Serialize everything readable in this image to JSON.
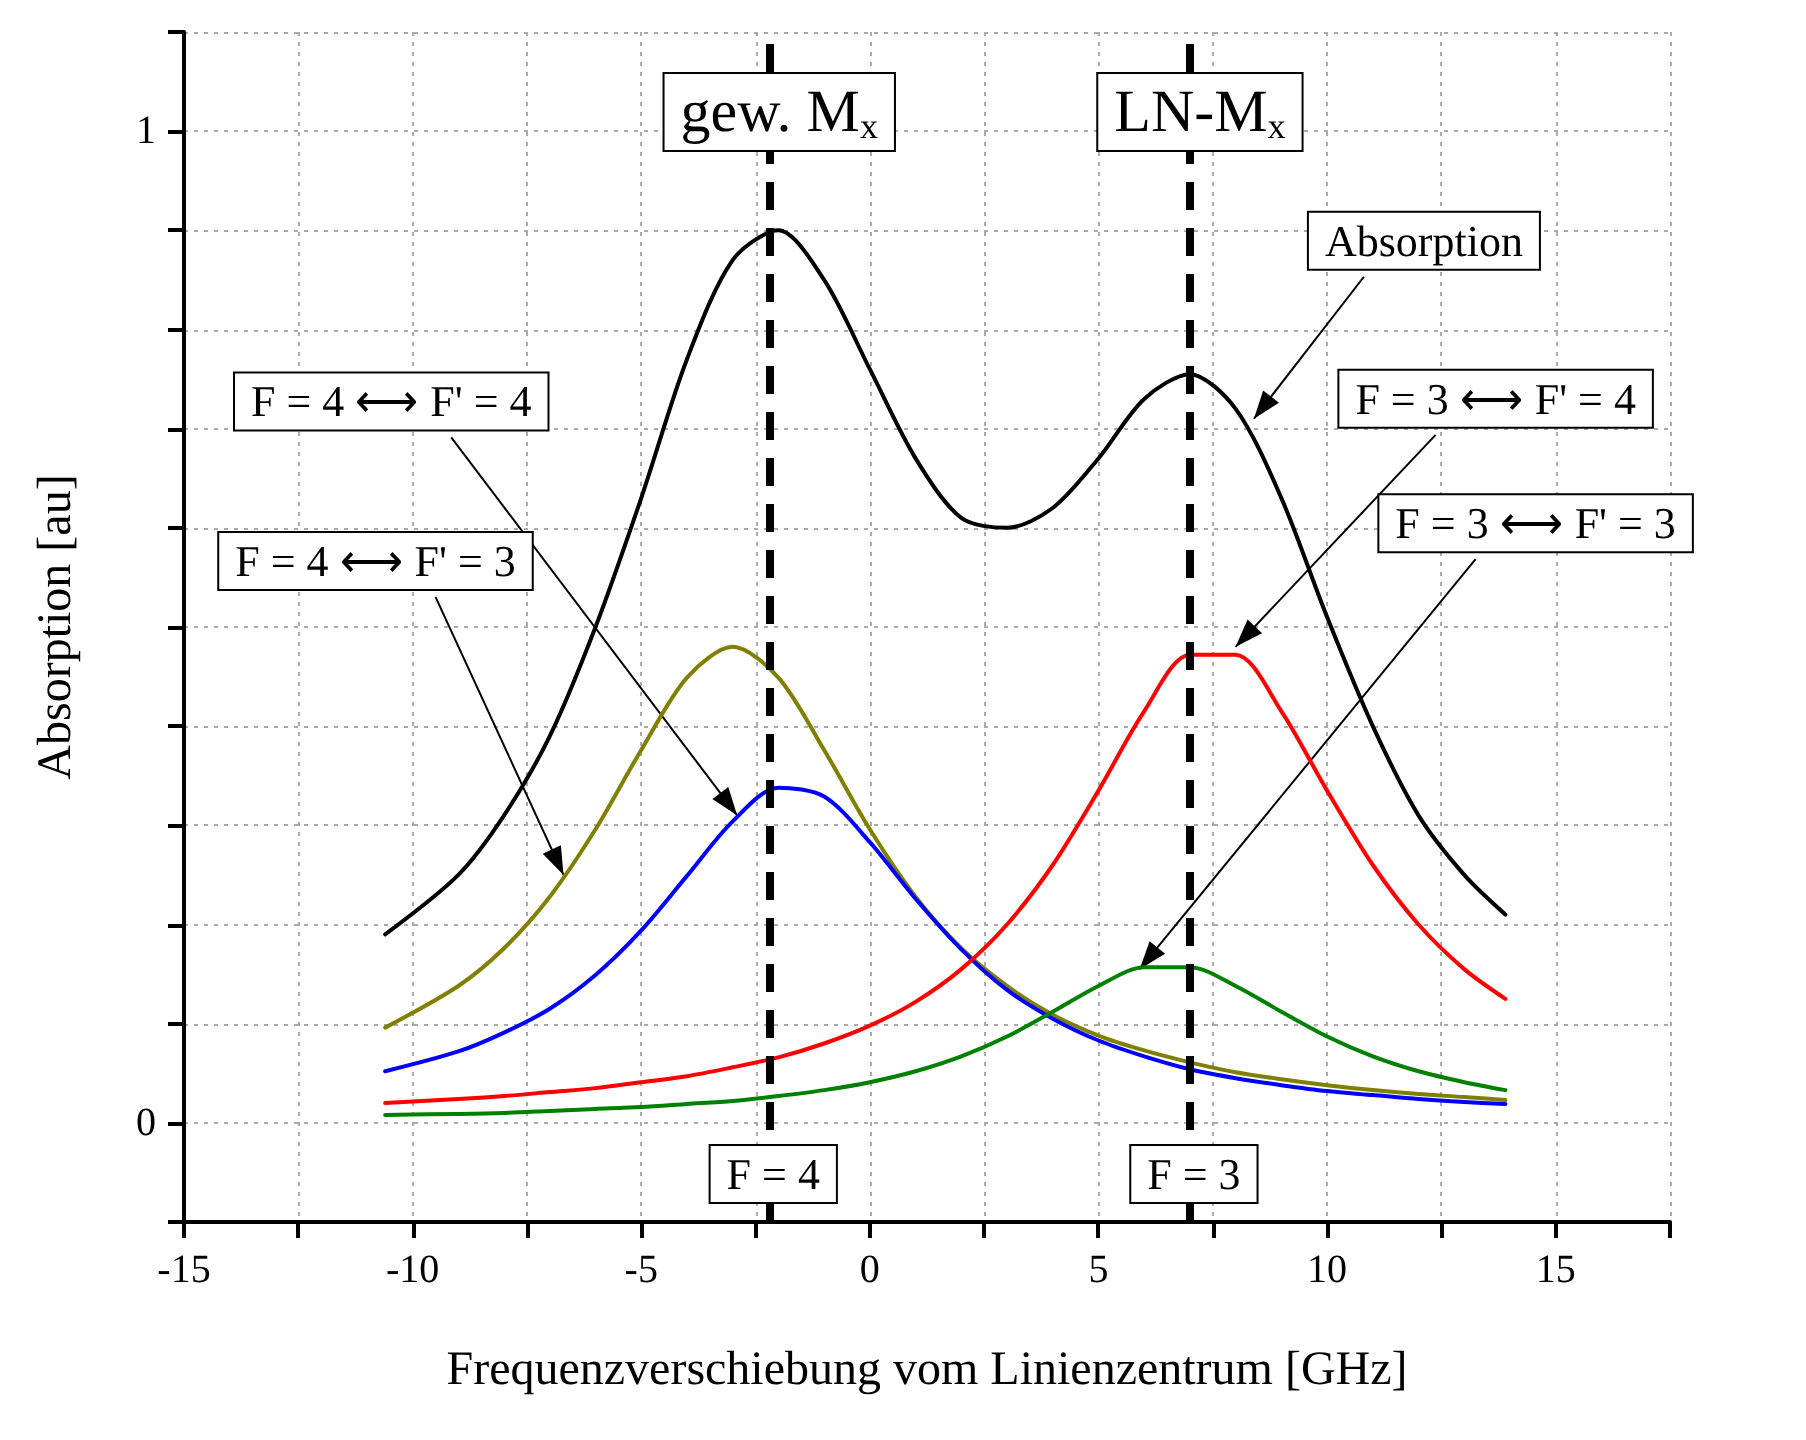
{
  "chart_data": {
    "type": "line",
    "xlabel": "Frequenzverschiebung vom Linienzentrum [GHz]",
    "ylabel": "Absorption [au]",
    "x": [
      -10.6,
      -9,
      -8,
      -7,
      -6,
      -5,
      -4,
      -3,
      -2,
      -1,
      0,
      1,
      2,
      3,
      4,
      5,
      6,
      7,
      8,
      9,
      10,
      11,
      12,
      13,
      13.9
    ],
    "series": [
      {
        "color": "#000000",
        "values": [
          0.19,
          0.25,
          0.31,
          0.39,
          0.5,
          0.63,
          0.77,
          0.87,
          0.9,
          0.85,
          0.76,
          0.67,
          0.61,
          0.6,
          0.62,
          0.67,
          0.73,
          0.755,
          0.72,
          0.63,
          0.51,
          0.4,
          0.31,
          0.25,
          0.21
        ]
      },
      {
        "color": "#808000",
        "values": [
          0.096,
          0.138,
          0.176,
          0.228,
          0.296,
          0.376,
          0.449,
          0.48,
          0.449,
          0.376,
          0.296,
          0.228,
          0.176,
          0.138,
          0.109,
          0.088,
          0.073,
          0.061,
          0.051,
          0.044,
          0.038,
          0.033,
          0.029,
          0.026,
          0.023
        ]
      },
      {
        "color": "#0000ff",
        "values": [
          0.052,
          0.072,
          0.091,
          0.115,
          0.149,
          0.194,
          0.249,
          0.304,
          0.338,
          0.329,
          0.283,
          0.226,
          0.175,
          0.134,
          0.105,
          0.083,
          0.067,
          0.054,
          0.045,
          0.038,
          0.032,
          0.028,
          0.024,
          0.021,
          0.019
        ]
      },
      {
        "color": "#ff0000",
        "values": [
          0.02,
          0.024,
          0.027,
          0.031,
          0.035,
          0.041,
          0.047,
          0.056,
          0.066,
          0.08,
          0.098,
          0.122,
          0.155,
          0.2,
          0.26,
          0.335,
          0.415,
          0.472,
          0.472,
          0.415,
          0.335,
          0.26,
          0.2,
          0.155,
          0.125
        ]
      },
      {
        "color": "#008000",
        "values": [
          0.008,
          0.009,
          0.01,
          0.012,
          0.014,
          0.016,
          0.019,
          0.022,
          0.027,
          0.033,
          0.041,
          0.052,
          0.067,
          0.087,
          0.112,
          0.138,
          0.157,
          0.157,
          0.138,
          0.112,
          0.087,
          0.067,
          0.052,
          0.041,
          0.033
        ]
      }
    ],
    "xlim": [
      -15,
      17.5
    ],
    "xticks": [
      -15,
      {
        "value": -12.5,
        "label": null
      },
      -10,
      {
        "value": -7.5,
        "label": null
      },
      -5,
      {
        "value": -2.5,
        "label": null
      },
      0,
      {
        "value": 2.5,
        "label": null
      },
      5,
      {
        "value": 7.5,
        "label": null
      },
      10,
      {
        "value": 12.5,
        "label": null
      },
      15,
      {
        "value": 17.5,
        "label": null
      }
    ],
    "ylim": [
      -0.1,
      1.1
    ],
    "yticks": [
      {
        "value": -0.1,
        "label": null
      },
      0,
      {
        "value": 0.1,
        "label": null
      },
      {
        "value": 0.2,
        "label": null
      },
      {
        "value": 0.3,
        "label": null
      },
      {
        "value": 0.4,
        "label": null
      },
      {
        "value": 0.5,
        "label": null
      },
      {
        "value": 0.6,
        "label": null
      },
      {
        "value": 0.7,
        "label": null
      },
      {
        "value": 0.8,
        "label": null
      },
      {
        "value": 0.9,
        "label": null
      },
      1,
      {
        "value": 1.1,
        "label": null
      }
    ],
    "grid": true,
    "marker": "none",
    "line_style": "solid",
    "ref_lines": [
      {
        "axis": "x",
        "value": -2.2,
        "label": "gew. M$_{x}$",
        "color": "#000000",
        "line_style": "dashed"
      },
      {
        "axis": "x",
        "value": 7,
        "label": "LN-M$_{x}$",
        "color": "#000000",
        "line_style": "dashed"
      }
    ],
    "annotations": [
      "F = 4",
      "F = 3",
      {
        "text": "Absorption",
        "x": 8.4,
        "y": 0.71
      },
      {
        "text": "F = 3 ⟷ F' = 4",
        "x": 8.0,
        "y": 0.48
      },
      {
        "text": "F = 3 ⟷ F' = 3",
        "x": 5.9,
        "y": 0.155
      },
      {
        "text": "F = 4 ⟷ F' = 4",
        "x": -2.9,
        "y": 0.31
      },
      {
        "text": "F = 4 ⟷ F' = 3",
        "x": -6.7,
        "y": 0.25
      }
    ]
  }
}
